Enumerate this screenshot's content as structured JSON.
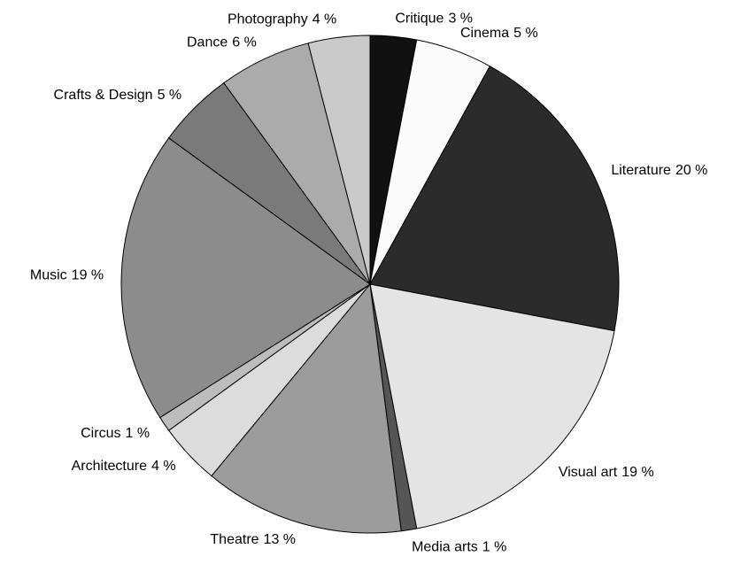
{
  "chart_data": {
    "type": "pie",
    "categories": [
      "Critique",
      "Cinema",
      "Literature",
      "Visual art",
      "Media arts",
      "Theatre",
      "Architecture",
      "Circus",
      "Music",
      "Crafts & Design",
      "Dance",
      "Photography"
    ],
    "values": [
      3,
      5,
      20,
      19,
      1,
      13,
      4,
      1,
      19,
      5,
      6,
      4
    ],
    "value_labels": [
      "3 %",
      "5 %",
      "20 %",
      "19 %",
      "1 %",
      "13 %",
      "4 %",
      "1 %",
      "19 %",
      "5 %",
      "6 %",
      "4 %"
    ],
    "colors": [
      "#111111",
      "#fbfbfb",
      "#2b2b2b",
      "#e4e4e4",
      "#555555",
      "#9c9c9c",
      "#dcdcdc",
      "#bdbdbd",
      "#8c8c8c",
      "#7a7a7a",
      "#ababab",
      "#cacaca"
    ]
  }
}
